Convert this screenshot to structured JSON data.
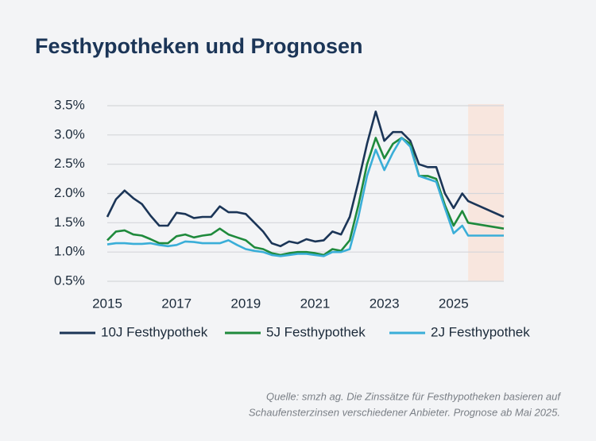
{
  "chart_data": {
    "type": "line",
    "title": "Festhypotheken und Prognosen",
    "x": [
      2015,
      2015.25,
      2015.5,
      2015.75,
      2016,
      2016.25,
      2016.5,
      2016.75,
      2017,
      2017.25,
      2017.5,
      2017.75,
      2018,
      2018.25,
      2018.5,
      2018.75,
      2019,
      2019.25,
      2019.5,
      2019.75,
      2020,
      2020.25,
      2020.5,
      2020.75,
      2021,
      2021.25,
      2021.5,
      2021.75,
      2022,
      2022.25,
      2022.5,
      2022.75,
      2023,
      2023.25,
      2023.5,
      2023.75,
      2024,
      2024.25,
      2024.5,
      2024.75,
      2025,
      2025.25,
      2025.42,
      2026.45
    ],
    "series": [
      {
        "name": "10J Festhypothek",
        "color": "#1b3557",
        "values": [
          1.6,
          1.9,
          2.05,
          1.92,
          1.82,
          1.62,
          1.45,
          1.45,
          1.67,
          1.65,
          1.58,
          1.6,
          1.6,
          1.78,
          1.68,
          1.68,
          1.65,
          1.5,
          1.35,
          1.15,
          1.1,
          1.18,
          1.15,
          1.22,
          1.18,
          1.2,
          1.35,
          1.3,
          1.6,
          2.2,
          2.85,
          3.4,
          2.9,
          3.05,
          3.05,
          2.9,
          2.5,
          2.45,
          2.45,
          2.0,
          1.75,
          2.0,
          1.87,
          1.6
        ]
      },
      {
        "name": "5J Festhypothek",
        "color": "#1f8a3c",
        "values": [
          1.2,
          1.35,
          1.37,
          1.3,
          1.28,
          1.22,
          1.15,
          1.15,
          1.27,
          1.3,
          1.25,
          1.28,
          1.3,
          1.4,
          1.3,
          1.25,
          1.2,
          1.08,
          1.05,
          0.98,
          0.95,
          0.98,
          1.0,
          1.0,
          0.98,
          0.95,
          1.05,
          1.02,
          1.2,
          1.8,
          2.5,
          2.95,
          2.6,
          2.85,
          2.95,
          2.85,
          2.3,
          2.3,
          2.25,
          1.8,
          1.45,
          1.7,
          1.5,
          1.4
        ]
      },
      {
        "name": "2J Festhypothek",
        "color": "#3aaed8",
        "values": [
          1.13,
          1.15,
          1.15,
          1.14,
          1.14,
          1.15,
          1.12,
          1.1,
          1.12,
          1.18,
          1.17,
          1.15,
          1.15,
          1.15,
          1.2,
          1.12,
          1.05,
          1.02,
          1.0,
          0.95,
          0.93,
          0.95,
          0.97,
          0.97,
          0.95,
          0.93,
          1.0,
          1.0,
          1.05,
          1.6,
          2.3,
          2.75,
          2.4,
          2.7,
          2.95,
          2.8,
          2.3,
          2.25,
          2.2,
          1.75,
          1.32,
          1.45,
          1.28,
          1.28
        ]
      }
    ],
    "forecast_span": [
      2025.42,
      2026.45
    ],
    "xlim": [
      2015,
      2026.45
    ],
    "xticks": [
      2015,
      2017,
      2019,
      2021,
      2023,
      2025
    ],
    "ylim": [
      0.5,
      3.5
    ],
    "yticks": [
      {
        "value": 0.5,
        "label": "0.5%"
      },
      {
        "value": 1.0,
        "label": "1.0%"
      },
      {
        "value": 1.5,
        "label": "1.5%"
      },
      {
        "value": 2.0,
        "label": "2.0%"
      },
      {
        "value": 2.5,
        "label": "2.5%"
      },
      {
        "value": 3.0,
        "label": "3.0%"
      },
      {
        "value": 3.5,
        "label": "3.5%"
      }
    ],
    "grid": true,
    "source": [
      "Quelle: smzh ag. Die Zinssätze für Festhypotheken basieren auf",
      "Schaufensterzinsen verschiedener Anbieter. Prognose ab Mai 2025."
    ]
  }
}
